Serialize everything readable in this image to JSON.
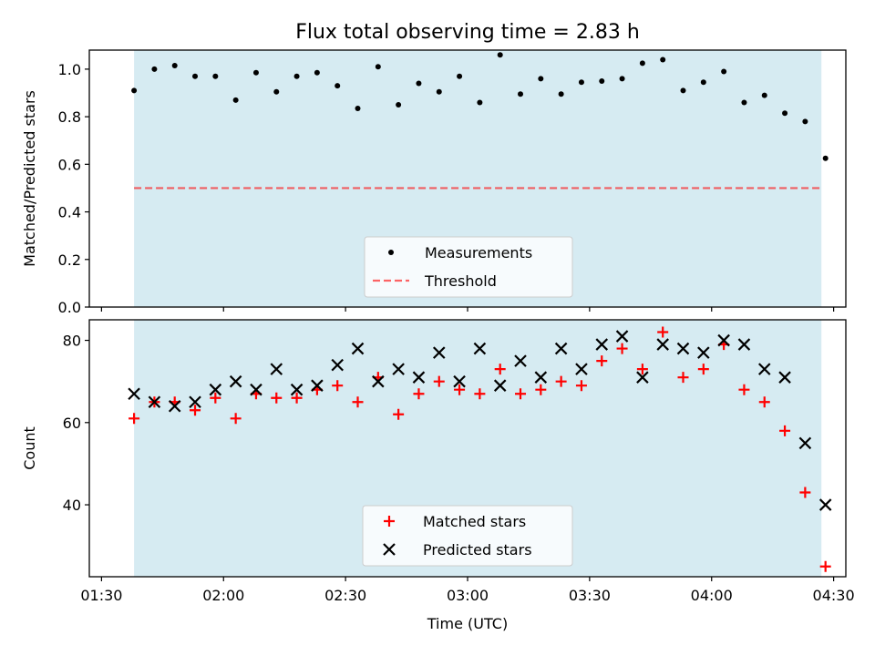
{
  "title": "Flux total observing time = 2.83 h",
  "colors": {
    "band": "#add8e6",
    "measurements": "#000000",
    "threshold": "#ff0000",
    "matched": "#ff0000",
    "predicted": "#000000"
  },
  "chart_data": [
    {
      "type": "scatter",
      "ylabel": "Matched/Predicted stars",
      "xlabel": "",
      "x_range": [
        "01:27",
        "04:33"
      ],
      "ylim": [
        0,
        1.08
      ],
      "yticks": [
        "0.0",
        "0.2",
        "0.4",
        "0.6",
        "0.8",
        "1.0"
      ],
      "shaded_span": [
        "01:38",
        "04:27"
      ],
      "grid": false,
      "legend_position": "lower center",
      "series": [
        {
          "name": "Measurements",
          "marker": "dot",
          "x": [
            "01:38",
            "01:43",
            "01:48",
            "01:53",
            "01:58",
            "02:03",
            "02:08",
            "02:13",
            "02:18",
            "02:23",
            "02:28",
            "02:33",
            "02:38",
            "02:43",
            "02:48",
            "02:53",
            "02:58",
            "03:03",
            "03:08",
            "03:13",
            "03:18",
            "03:23",
            "03:28",
            "03:33",
            "03:38",
            "03:43",
            "03:48",
            "03:53",
            "03:58",
            "04:03",
            "04:08",
            "04:13",
            "04:18",
            "04:23",
            "04:28"
          ],
          "y": [
            0.91,
            1.0,
            1.015,
            0.97,
            0.97,
            0.87,
            0.985,
            0.905,
            0.97,
            0.985,
            0.93,
            0.835,
            1.01,
            0.85,
            0.94,
            0.905,
            0.97,
            0.86,
            1.06,
            0.895,
            0.96,
            0.895,
            0.945,
            0.95,
            0.96,
            1.025,
            1.04,
            0.91,
            0.945,
            0.99,
            0.86,
            0.89,
            0.815,
            0.78,
            0.625
          ]
        },
        {
          "name": "Threshold",
          "marker": "dashed-line",
          "x": [
            "01:38",
            "04:27"
          ],
          "y": [
            0.5,
            0.5
          ]
        }
      ]
    },
    {
      "type": "scatter",
      "ylabel": "Count",
      "xlabel": "Time (UTC)",
      "x_range": [
        "01:27",
        "04:33"
      ],
      "xticks": [
        "01:30",
        "02:00",
        "02:30",
        "03:00",
        "03:30",
        "04:00",
        "04:30"
      ],
      "ylim": [
        22.5,
        85
      ],
      "yticks": [
        "40",
        "60",
        "80"
      ],
      "shaded_span": [
        "01:38",
        "04:27"
      ],
      "grid": false,
      "legend_position": "lower center",
      "series": [
        {
          "name": "Matched stars",
          "marker": "plus",
          "x": [
            "01:38",
            "01:43",
            "01:48",
            "01:53",
            "01:58",
            "02:03",
            "02:08",
            "02:13",
            "02:18",
            "02:23",
            "02:28",
            "02:33",
            "02:38",
            "02:43",
            "02:48",
            "02:53",
            "02:58",
            "03:03",
            "03:08",
            "03:13",
            "03:18",
            "03:23",
            "03:28",
            "03:33",
            "03:38",
            "03:43",
            "03:48",
            "03:53",
            "03:58",
            "04:03",
            "04:08",
            "04:13",
            "04:18",
            "04:23",
            "04:28"
          ],
          "y": [
            61,
            65,
            65,
            63,
            66,
            61,
            67,
            66,
            66,
            68,
            69,
            65,
            71,
            62,
            67,
            70,
            68,
            67,
            73,
            67,
            68,
            70,
            69,
            75,
            78,
            73,
            82,
            71,
            73,
            79,
            68,
            65,
            58,
            43,
            25
          ]
        },
        {
          "name": "Predicted stars",
          "marker": "x",
          "x": [
            "01:38",
            "01:43",
            "01:48",
            "01:53",
            "01:58",
            "02:03",
            "02:08",
            "02:13",
            "02:18",
            "02:23",
            "02:28",
            "02:33",
            "02:38",
            "02:43",
            "02:48",
            "02:53",
            "02:58",
            "03:03",
            "03:08",
            "03:13",
            "03:18",
            "03:23",
            "03:28",
            "03:33",
            "03:38",
            "03:43",
            "03:48",
            "03:53",
            "03:58",
            "04:03",
            "04:08",
            "04:13",
            "04:18",
            "04:23",
            "04:28"
          ],
          "y": [
            67,
            65,
            64,
            65,
            68,
            70,
            68,
            73,
            68,
            69,
            74,
            78,
            70,
            73,
            71,
            77,
            70,
            78,
            69,
            75,
            71,
            78,
            73,
            79,
            81,
            71,
            79,
            78,
            77,
            80,
            79,
            73,
            71,
            55,
            40
          ]
        }
      ]
    }
  ]
}
